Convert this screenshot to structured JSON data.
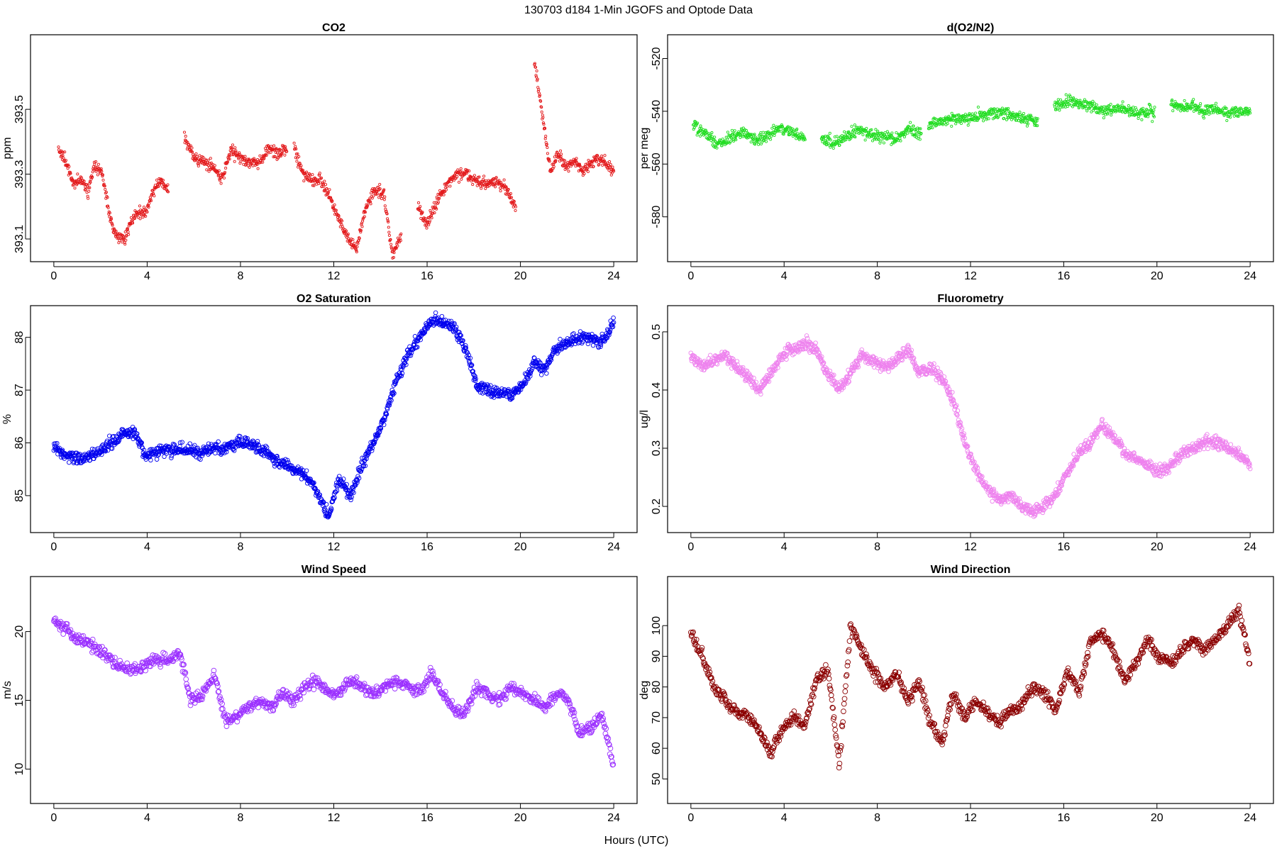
{
  "figure": {
    "suptitle": "130703   d184   1-Min  JGOFS and Optode Data",
    "xlabel": "Hours (UTC)"
  },
  "chart_data": [
    {
      "type": "scatter",
      "id": "co2",
      "title": "CO2",
      "ylabel": "ppm",
      "color": "#e31a1c",
      "xlim": [
        -1,
        25
      ],
      "ylim": [
        393.03,
        393.73
      ],
      "xticks": [
        "0",
        "4",
        "8",
        "12",
        "16",
        "20",
        "24"
      ],
      "yticks": [
        "393.1",
        "393.3",
        "393.5"
      ],
      "marker_size": 1.6,
      "density": 1,
      "segments": [
        {
          "from": 0.2,
          "to": 4.9,
          "values": [
            393.38,
            393.34,
            393.27,
            393.29,
            393.25,
            393.33,
            393.3,
            393.17,
            393.11,
            393.1,
            393.16,
            393.19,
            393.18,
            393.25,
            393.28,
            393.25
          ]
        },
        {
          "from": 5.6,
          "to": 10.0,
          "values": [
            393.41,
            393.35,
            393.34,
            393.32,
            393.28,
            393.38,
            393.35,
            393.34,
            393.33,
            393.38,
            393.36,
            393.38
          ]
        },
        {
          "from": 10.3,
          "to": 14.9,
          "values": [
            393.38,
            393.3,
            393.28,
            393.28,
            393.23,
            393.16,
            393.1,
            393.07,
            393.2,
            393.25,
            393.24,
            393.05,
            393.12
          ]
        },
        {
          "from": 15.6,
          "to": 19.8,
          "values": [
            393.2,
            393.15,
            393.22,
            393.27,
            393.3,
            393.3,
            393.28,
            393.27,
            393.28,
            393.26,
            393.19
          ]
        },
        {
          "from": 20.6,
          "to": 24.0,
          "values": [
            393.65,
            393.48,
            393.31,
            393.36,
            393.32,
            393.34,
            393.31,
            393.33,
            393.35,
            393.33,
            393.31
          ]
        }
      ]
    },
    {
      "type": "scatter",
      "id": "o2n2",
      "title": "d(O2/N2)",
      "ylabel": "per meg",
      "color": "#22dd22",
      "xlim": [
        -1,
        25
      ],
      "ylim": [
        -597,
        -511
      ],
      "xticks": [
        "0",
        "4",
        "8",
        "12",
        "16",
        "20",
        "24"
      ],
      "yticks": [
        "-520",
        "-540",
        "-560",
        "-580"
      ],
      "marker_size": 1.6,
      "density": 1,
      "segments": [
        {
          "from": 0.1,
          "to": 4.9,
          "values": [
            -545,
            -549,
            -552,
            -550,
            -548,
            -551,
            -549,
            -546,
            -548,
            -550
          ]
        },
        {
          "from": 5.6,
          "to": 9.9,
          "values": [
            -550,
            -552,
            -550,
            -547,
            -549,
            -550,
            -550,
            -547,
            -548
          ]
        },
        {
          "from": 10.2,
          "to": 14.9,
          "values": [
            -545,
            -544,
            -543,
            -543,
            -542,
            -541,
            -540,
            -542,
            -543,
            -544
          ]
        },
        {
          "from": 15.6,
          "to": 19.9,
          "values": [
            -538,
            -536,
            -537,
            -538,
            -540,
            -539,
            -540,
            -541,
            -540
          ]
        },
        {
          "from": 20.6,
          "to": 24.0,
          "values": [
            -537,
            -539,
            -538,
            -540,
            -539,
            -541,
            -540,
            -540
          ]
        }
      ]
    },
    {
      "type": "scatter",
      "id": "o2sat",
      "title": "O2 Saturation",
      "ylabel": "%",
      "color": "#0000ee",
      "xlim": [
        -1,
        25
      ],
      "ylim": [
        84.3,
        88.6
      ],
      "xticks": [
        "0",
        "4",
        "8",
        "12",
        "16",
        "20",
        "24"
      ],
      "yticks": [
        "85",
        "86",
        "87",
        "88"
      ],
      "marker_size": 2.8,
      "density": 1,
      "segments": [
        {
          "from": 0.0,
          "to": 24.0,
          "values": [
            85.95,
            85.75,
            85.7,
            85.75,
            85.85,
            86.0,
            86.15,
            86.2,
            85.75,
            85.8,
            85.9,
            85.85,
            85.85,
            85.8,
            85.9,
            85.9,
            86.0,
            86.0,
            85.9,
            85.75,
            85.6,
            85.5,
            85.4,
            85.1,
            84.6,
            85.3,
            85.0,
            85.6,
            86.0,
            86.5,
            87.2,
            87.7,
            88.0,
            88.3,
            88.3,
            88.2,
            87.8,
            87.1,
            87.0,
            86.95,
            86.9,
            87.1,
            87.5,
            87.4,
            87.8,
            87.9,
            88.0,
            88.0,
            87.9,
            88.3
          ]
        }
      ]
    },
    {
      "type": "scatter",
      "id": "fluor",
      "title": "Fluorometry",
      "ylabel": "ug/l",
      "color": "#ee82ee",
      "xlim": [
        -1,
        25
      ],
      "ylim": [
        0.155,
        0.545
      ],
      "xticks": [
        "0",
        "4",
        "8",
        "12",
        "16",
        "20",
        "24"
      ],
      "yticks": [
        "0.2",
        "0.3",
        "0.4",
        "0.5"
      ],
      "marker_size": 2.8,
      "density": 1,
      "segments": [
        {
          "from": 0.0,
          "to": 24.0,
          "values": [
            0.46,
            0.44,
            0.45,
            0.46,
            0.44,
            0.42,
            0.4,
            0.43,
            0.46,
            0.47,
            0.48,
            0.47,
            0.43,
            0.4,
            0.43,
            0.46,
            0.45,
            0.44,
            0.45,
            0.47,
            0.43,
            0.44,
            0.42,
            0.38,
            0.31,
            0.26,
            0.23,
            0.21,
            0.22,
            0.2,
            0.19,
            0.2,
            0.22,
            0.26,
            0.29,
            0.31,
            0.34,
            0.32,
            0.29,
            0.28,
            0.27,
            0.26,
            0.27,
            0.29,
            0.3,
            0.31,
            0.31,
            0.3,
            0.29,
            0.27
          ]
        }
      ]
    },
    {
      "type": "scatter",
      "id": "wspd",
      "title": "Wind Speed",
      "ylabel": "m/s",
      "color": "#9b30ff",
      "xlim": [
        -1,
        25
      ],
      "ylim": [
        7.5,
        24
      ],
      "xticks": [
        "0",
        "4",
        "8",
        "12",
        "16",
        "20",
        "24"
      ],
      "yticks": [
        "10",
        "15",
        "20"
      ],
      "marker_size": 3.4,
      "density": 0.7,
      "segments": [
        {
          "from": 0.0,
          "to": 24.0,
          "values": [
            20.8,
            20.3,
            19.5,
            19.2,
            18.5,
            18.0,
            17.5,
            17.2,
            17.6,
            18.0,
            17.8,
            18.5,
            15.0,
            15.5,
            17.0,
            13.5,
            14.0,
            14.5,
            15.0,
            14.5,
            15.5,
            15.0,
            16.0,
            16.5,
            15.5,
            15.5,
            16.5,
            16.0,
            15.5,
            16.0,
            16.5,
            16.0,
            15.5,
            17.0,
            15.5,
            14.5,
            14.0,
            16.0,
            15.5,
            15.0,
            16.0,
            15.5,
            15.0,
            14.5,
            15.5,
            15.0,
            12.5,
            13.0,
            14.0,
            10.0
          ]
        }
      ]
    },
    {
      "type": "scatter",
      "id": "wdir",
      "title": "Wind Direction",
      "ylabel": "deg",
      "color": "#8b0000",
      "xlim": [
        -1,
        25
      ],
      "ylim": [
        42,
        116
      ],
      "xticks": [
        "0",
        "4",
        "8",
        "12",
        "16",
        "20",
        "24"
      ],
      "yticks": [
        "50",
        "60",
        "70",
        "80",
        "90",
        "100"
      ],
      "marker_size": 3.4,
      "density": 0.7,
      "segments": [
        {
          "from": 0.0,
          "to": 24.0,
          "values": [
            97,
            90,
            80,
            76,
            72,
            70,
            66,
            58,
            66,
            70,
            68,
            82,
            86,
            55,
            100,
            92,
            85,
            80,
            85,
            75,
            82,
            68,
            62,
            78,
            70,
            75,
            72,
            68,
            72,
            74,
            80,
            78,
            72,
            85,
            78,
            95,
            98,
            92,
            82,
            88,
            95,
            90,
            88,
            92,
            95,
            92,
            96,
            100,
            105,
            88
          ]
        }
      ]
    }
  ]
}
